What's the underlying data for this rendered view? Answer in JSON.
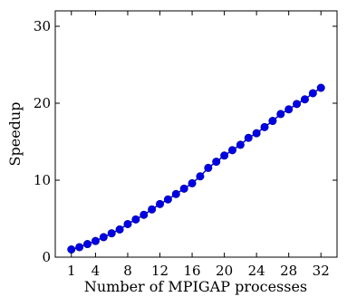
{
  "chart_data": {
    "type": "line",
    "title": "",
    "xlabel": "Number of MPIGAP processes",
    "ylabel": "Speedup",
    "xlim": [
      -1,
      34
    ],
    "ylim": [
      0,
      32
    ],
    "x_ticks": [
      1,
      4,
      8,
      12,
      16,
      20,
      24,
      28,
      32
    ],
    "y_ticks": [
      0,
      10,
      20,
      30
    ],
    "grid": false,
    "legend": "none",
    "series": [
      {
        "color": "#0000e6",
        "marker": "circle",
        "x": [
          1,
          2,
          3,
          4,
          5,
          6,
          7,
          8,
          9,
          10,
          11,
          12,
          13,
          14,
          15,
          16,
          17,
          18,
          19,
          20,
          21,
          22,
          23,
          24,
          25,
          26,
          27,
          28,
          29,
          30,
          31,
          32
        ],
        "y": [
          1.0,
          1.3,
          1.7,
          2.1,
          2.6,
          3.1,
          3.6,
          4.3,
          4.9,
          5.5,
          6.2,
          6.9,
          7.5,
          8.2,
          8.9,
          9.6,
          10.5,
          11.6,
          12.4,
          13.2,
          13.9,
          14.6,
          15.5,
          16.1,
          16.9,
          17.7,
          18.6,
          19.2,
          19.9,
          20.5,
          21.3,
          22.0
        ]
      }
    ]
  }
}
